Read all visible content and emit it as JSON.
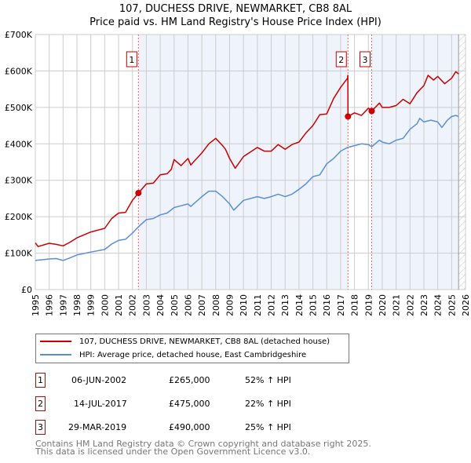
{
  "chart_data": {
    "type": "line",
    "title": "107, DUCHESS DRIVE, NEWMARKET, CB8 8AL",
    "subtitle": "Price paid vs. HM Land Registry's House Price Index (HPI)",
    "xlim": [
      1995,
      2026
    ],
    "ylim": [
      0,
      700000
    ],
    "y_ticks": [
      {
        "v": 0,
        "label": "£0"
      },
      {
        "v": 100000,
        "label": "£100K"
      },
      {
        "v": 200000,
        "label": "£200K"
      },
      {
        "v": 300000,
        "label": "£300K"
      },
      {
        "v": 400000,
        "label": "£400K"
      },
      {
        "v": 500000,
        "label": "£500K"
      },
      {
        "v": 600000,
        "label": "£600K"
      },
      {
        "v": 700000,
        "label": "£700K"
      }
    ],
    "x_ticks": [
      "1995",
      "1996",
      "1997",
      "1998",
      "1999",
      "2000",
      "2001",
      "2002",
      "2003",
      "2004",
      "2005",
      "2006",
      "2007",
      "2008",
      "2009",
      "2010",
      "2011",
      "2012",
      "2013",
      "2014",
      "2015",
      "2016",
      "2017",
      "2018",
      "2019",
      "2020",
      "2021",
      "2022",
      "2023",
      "2024",
      "2025",
      "2026"
    ],
    "grid": true,
    "series": [
      {
        "name": "107, DUCHESS DRIVE, NEWMARKET, CB8 8AL (detached house)",
        "color": "#cc0000",
        "x": [
          1995,
          1995.2,
          1996,
          1996.5,
          1997,
          1997.5,
          1998,
          1999,
          2000,
          2000.5,
          2001,
          2001.5,
          2002,
          2002.43,
          2003,
          2003.5,
          2004,
          2004.5,
          2004.8,
          2005,
          2005.5,
          2006,
          2006.2,
          2007,
          2007.5,
          2008,
          2008.5,
          2008.7,
          2009,
          2009.4,
          2010,
          2011,
          2011.5,
          2012,
          2012.5,
          2013,
          2013.5,
          2014,
          2014.5,
          2015,
          2015.5,
          2016,
          2016.5,
          2017,
          2017.5,
          2017.52,
          2017.53,
          2018,
          2018.5,
          2019,
          2019.24,
          2019.8,
          2020,
          2020.5,
          2021,
          2021.5,
          2022,
          2022.5,
          2023,
          2023.3,
          2023.7,
          2024,
          2024.5,
          2025,
          2025.3,
          2025.5
        ],
        "y": [
          128000,
          118000,
          127000,
          124000,
          120000,
          130000,
          142000,
          158000,
          168000,
          195000,
          210000,
          212000,
          245000,
          265000,
          290000,
          292000,
          315000,
          318000,
          330000,
          357000,
          340000,
          360000,
          342000,
          375000,
          400000,
          415000,
          395000,
          385000,
          360000,
          333000,
          365000,
          390000,
          380000,
          380000,
          398000,
          385000,
          398000,
          405000,
          430000,
          450000,
          480000,
          482000,
          525000,
          555000,
          580000,
          588000,
          475000,
          485000,
          478000,
          498000,
          490000,
          512000,
          500000,
          500000,
          505000,
          522000,
          510000,
          540000,
          560000,
          588000,
          575000,
          585000,
          565000,
          580000,
          598000,
          592000
        ]
      },
      {
        "name": "HPI: Average price, detached house, East Cambridgeshire",
        "color": "#5b8fd4",
        "x": [
          1995,
          1996,
          1996.5,
          1997,
          1997.5,
          1998,
          1999,
          2000,
          2000.5,
          2001,
          2001.5,
          2002,
          2002.5,
          2003,
          2003.5,
          2004,
          2004.5,
          2005,
          2005.5,
          2006,
          2006.2,
          2007,
          2007.5,
          2008,
          2008.5,
          2009,
          2009.3,
          2010,
          2011,
          2011.5,
          2012,
          2012.5,
          2013,
          2013.5,
          2014,
          2014.5,
          2015,
          2015.5,
          2016,
          2016.5,
          2017,
          2017.5,
          2018,
          2018.5,
          2019,
          2019.24,
          2019.8,
          2020,
          2020.5,
          2021,
          2021.5,
          2022,
          2022.5,
          2022.7,
          2023,
          2023.5,
          2024,
          2024.3,
          2024.7,
          2025,
          2025.3,
          2025.5
        ],
        "y": [
          80000,
          84000,
          85000,
          80000,
          87000,
          95000,
          103000,
          110000,
          125000,
          135000,
          138000,
          155000,
          175000,
          192000,
          195000,
          205000,
          210000,
          225000,
          230000,
          235000,
          228000,
          255000,
          270000,
          270000,
          255000,
          235000,
          218000,
          245000,
          255000,
          250000,
          255000,
          262000,
          255000,
          262000,
          275000,
          290000,
          310000,
          315000,
          345000,
          360000,
          380000,
          390000,
          395000,
          400000,
          398000,
          392000,
          410000,
          405000,
          400000,
          410000,
          415000,
          440000,
          455000,
          470000,
          460000,
          465000,
          460000,
          445000,
          465000,
          475000,
          478000,
          475000
        ]
      }
    ],
    "sales": [
      {
        "num": "1",
        "x": 2002.43,
        "y": 265000,
        "date": "06-JUN-2002",
        "price": "£265,000",
        "hpi": "52% ↑ HPI"
      },
      {
        "num": "2",
        "x": 2017.53,
        "y": 475000,
        "date": "14-JUL-2017",
        "price": "£475,000",
        "hpi": "22% ↑ HPI"
      },
      {
        "num": "3",
        "x": 2019.24,
        "y": 490000,
        "date": "29-MAR-2019",
        "price": "£490,000",
        "hpi": "25% ↑ HPI"
      }
    ],
    "hatch_from": 2025.5,
    "legend_position": "below"
  },
  "footer": {
    "line1": "Contains HM Land Registry data © Crown copyright and database right 2025.",
    "line2": "This data is licensed under the Open Government Licence v3.0."
  }
}
